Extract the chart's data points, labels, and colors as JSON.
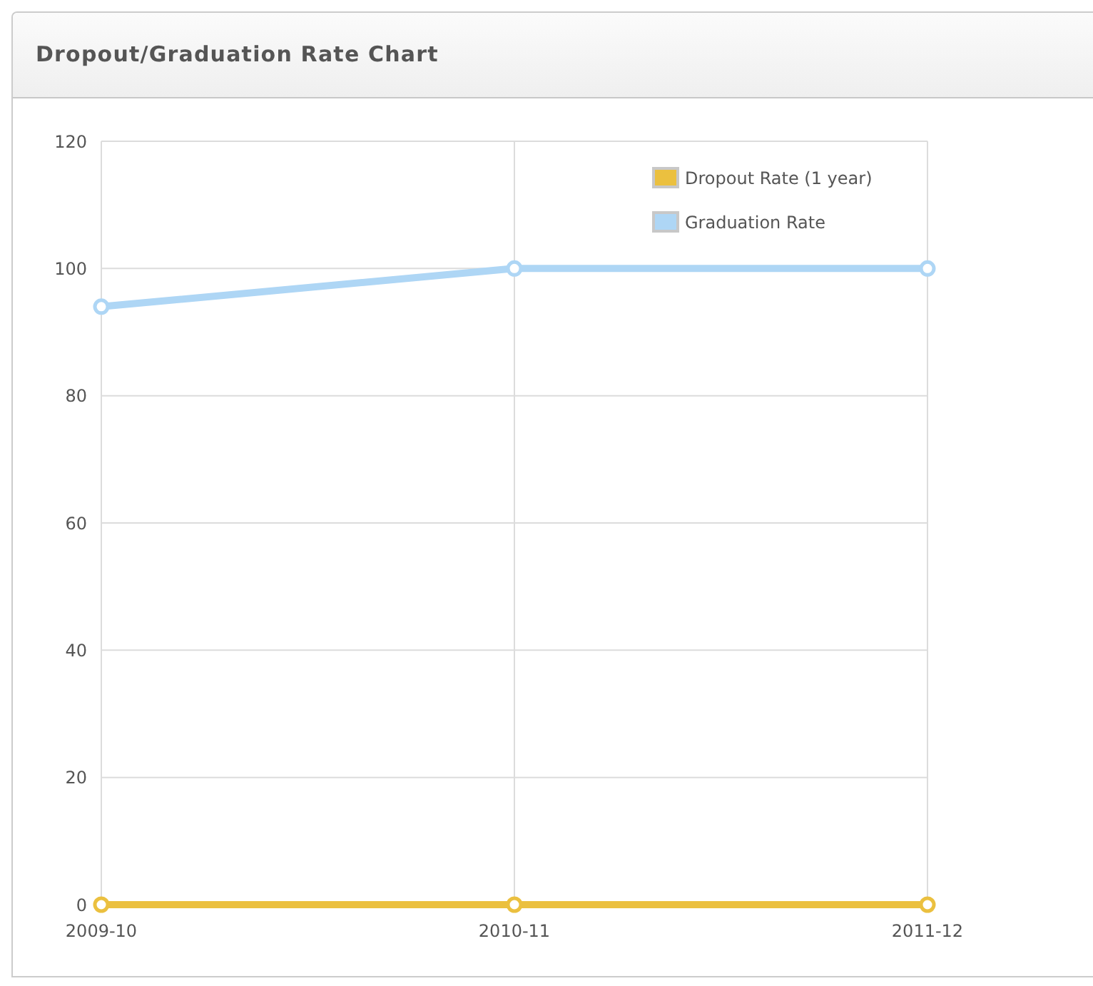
{
  "chart_data": {
    "type": "line",
    "title": "Dropout/Graduation Rate Chart",
    "categories": [
      "2009-10",
      "2010-11",
      "2011-12"
    ],
    "series": [
      {
        "name": "Dropout Rate (1 year)",
        "color": "#ebc03f",
        "values": [
          0,
          0,
          0
        ]
      },
      {
        "name": "Graduation Rate",
        "color": "#aed6f5",
        "values": [
          94,
          100,
          100
        ]
      }
    ],
    "ylim": [
      0,
      120
    ],
    "yticks": [
      0,
      20,
      40,
      60,
      80,
      100,
      120
    ],
    "grid": true,
    "legend": "top right",
    "marker": "circle",
    "line_style": "solid"
  }
}
